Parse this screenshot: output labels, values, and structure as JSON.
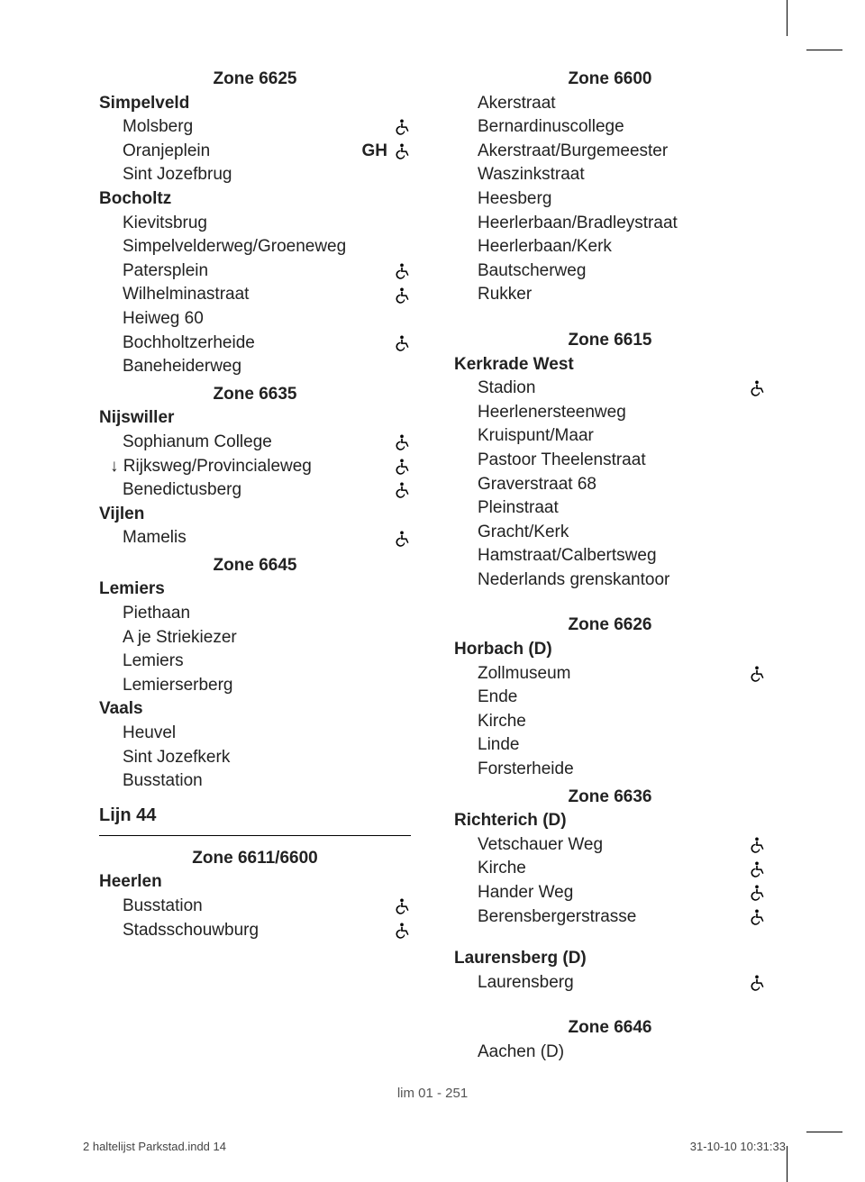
{
  "crop": {},
  "leftColumn": [
    {
      "type": "zone",
      "label": "Zone 6625",
      "first": true
    },
    {
      "type": "place",
      "label": "Simpelveld"
    },
    {
      "type": "stop",
      "label": "Molsberg",
      "icon": true
    },
    {
      "type": "stop",
      "label": "Oranjeplein",
      "prefix": "GH",
      "icon": true
    },
    {
      "type": "stop",
      "label": "Sint Jozefbrug"
    },
    {
      "type": "place",
      "label": "Bocholtz"
    },
    {
      "type": "stop",
      "label": "Kievitsbrug"
    },
    {
      "type": "stop",
      "label": "Simpelvelderweg/Groeneweg"
    },
    {
      "type": "stop",
      "label": "Patersplein",
      "icon": true
    },
    {
      "type": "stop",
      "label": "Wilhelminastraat",
      "icon": true
    },
    {
      "type": "stop",
      "label": "Heiweg 60"
    },
    {
      "type": "stop",
      "label": "Bochholtzerheide",
      "icon": true
    },
    {
      "type": "stop",
      "label": "Baneheiderweg"
    },
    {
      "type": "zone",
      "label": "Zone 6635"
    },
    {
      "type": "place",
      "label": "Nijswiller"
    },
    {
      "type": "stop",
      "label": "Sophianum College",
      "icon": true
    },
    {
      "type": "stop",
      "label": "↓ Rijksweg/Provincialeweg",
      "arrow": true,
      "icon": true
    },
    {
      "type": "stop",
      "label": "Benedictusberg",
      "icon": true
    },
    {
      "type": "place",
      "label": "Vijlen"
    },
    {
      "type": "stop",
      "label": "Mamelis",
      "icon": true
    },
    {
      "type": "zone",
      "label": "Zone 6645"
    },
    {
      "type": "place",
      "label": "Lemiers"
    },
    {
      "type": "stop",
      "label": "Piethaan"
    },
    {
      "type": "stop",
      "label": "A je Striekiezer"
    },
    {
      "type": "stop",
      "label": "Lemiers"
    },
    {
      "type": "stop",
      "label": "Lemierserberg"
    },
    {
      "type": "place",
      "label": "Vaals"
    },
    {
      "type": "stop",
      "label": "Heuvel"
    },
    {
      "type": "stop",
      "label": "Sint Jozefkerk"
    },
    {
      "type": "stop",
      "label": "Busstation"
    },
    {
      "type": "lijn",
      "label": "Lijn 44"
    },
    {
      "type": "divider"
    },
    {
      "type": "zone",
      "label": "Zone 6611/6600"
    },
    {
      "type": "place",
      "label": "Heerlen"
    },
    {
      "type": "stop",
      "label": "Busstation",
      "icon": true
    },
    {
      "type": "stop",
      "label": "Stadsschouwburg",
      "icon": true
    }
  ],
  "rightColumn": [
    {
      "type": "zone",
      "label": "Zone 6600",
      "first": true
    },
    {
      "type": "stop",
      "label": "Akerstraat"
    },
    {
      "type": "stop",
      "label": "Bernardinuscollege"
    },
    {
      "type": "stop",
      "label": "Akerstraat/Burgemeester"
    },
    {
      "type": "stop",
      "label": "Waszinkstraat"
    },
    {
      "type": "stop",
      "label": "Heesberg"
    },
    {
      "type": "stop",
      "label": "Heerlerbaan/Bradleystraat"
    },
    {
      "type": "stop",
      "label": "Heerlerbaan/Kerk"
    },
    {
      "type": "stop",
      "label": "Bautscherweg"
    },
    {
      "type": "stop",
      "label": "Rukker"
    },
    {
      "type": "spacer"
    },
    {
      "type": "zone",
      "label": "Zone 6615"
    },
    {
      "type": "place",
      "label": "Kerkrade West"
    },
    {
      "type": "stop",
      "label": "Stadion",
      "icon": true
    },
    {
      "type": "stop",
      "label": "Heerlenersteenweg"
    },
    {
      "type": "stop",
      "label": "Kruispunt/Maar"
    },
    {
      "type": "stop",
      "label": "Pastoor Theelenstraat"
    },
    {
      "type": "stop",
      "label": "Graverstraat 68"
    },
    {
      "type": "stop",
      "label": "Pleinstraat"
    },
    {
      "type": "stop",
      "label": "Gracht/Kerk"
    },
    {
      "type": "stop",
      "label": "Hamstraat/Calbertsweg"
    },
    {
      "type": "stop",
      "label": "Nederlands grenskantoor"
    },
    {
      "type": "spacer"
    },
    {
      "type": "zone",
      "label": "Zone 6626"
    },
    {
      "type": "place",
      "label": "Horbach (D)"
    },
    {
      "type": "stop",
      "label": "Zollmuseum",
      "icon": true
    },
    {
      "type": "stop",
      "label": "Ende"
    },
    {
      "type": "stop",
      "label": "Kirche"
    },
    {
      "type": "stop",
      "label": "Linde"
    },
    {
      "type": "stop",
      "label": "Forsterheide"
    },
    {
      "type": "zone",
      "label": "Zone 6636"
    },
    {
      "type": "place",
      "label": "Richterich (D)"
    },
    {
      "type": "stop",
      "label": "Vetschauer Weg",
      "icon": true
    },
    {
      "type": "stop",
      "label": "Kirche",
      "icon": true
    },
    {
      "type": "stop",
      "label": "Hander Weg",
      "icon": true
    },
    {
      "type": "stop",
      "label": "Berensbergerstrasse",
      "icon": true
    },
    {
      "type": "spacer"
    },
    {
      "type": "place",
      "label": "Laurensberg (D)"
    },
    {
      "type": "stop",
      "label": "Laurensberg",
      "icon": true
    },
    {
      "type": "spacer"
    },
    {
      "type": "zone",
      "label": "Zone 6646"
    },
    {
      "type": "stop",
      "label": "Aachen (D)"
    }
  ],
  "footer": "lim 01 - 251",
  "sourceFile": "2 haltelijst Parkstad.indd   14",
  "sourceTime": "31-10-10   10:31:33"
}
